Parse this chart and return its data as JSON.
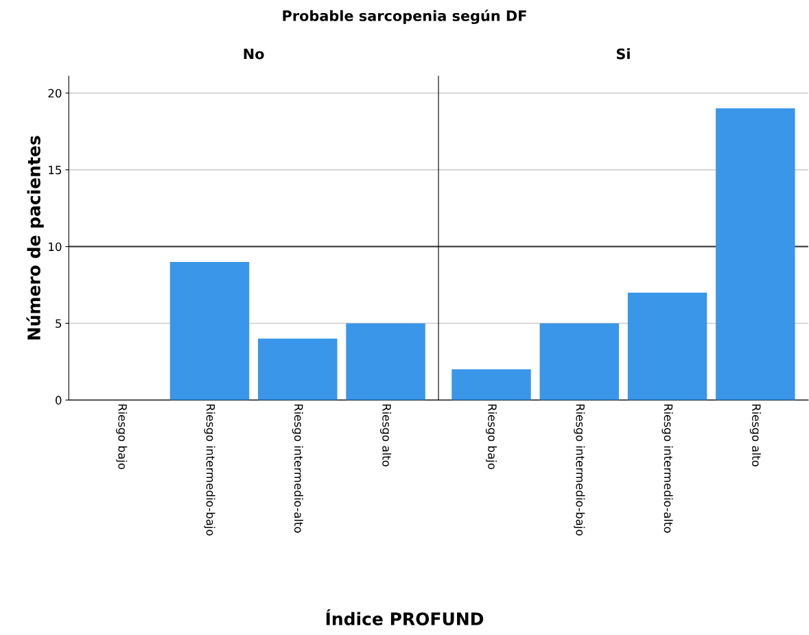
{
  "chart_data": [
    {
      "type": "bar",
      "title": "No",
      "ylabel": "Número de pacientes",
      "xlabel": "Índice PROFUND",
      "annotations": [
        "Probable sarcopenia según DF"
      ],
      "categories": [
        "Riesgo bajo",
        "Riesgo intermedio-bajo",
        "Riesgo intermedio-alto",
        "Riesgo alto"
      ],
      "values": [
        0,
        9,
        4,
        5
      ],
      "color": "#3a96e8",
      "ylim": [
        0,
        21.1
      ],
      "yticks": [
        0,
        5,
        10,
        15,
        20
      ],
      "grid": "y",
      "ref_lines": [
        {
          "axis": "y",
          "value": 10,
          "color": "#333333"
        }
      ]
    },
    {
      "type": "bar",
      "title": "Si",
      "categories": [
        "Riesgo bajo",
        "Riesgo intermedio-bajo",
        "Riesgo intermedio-alto",
        "Riesgo alto"
      ],
      "values": [
        2,
        5,
        7,
        19
      ],
      "color": "#3a96e8",
      "ylim": [
        0,
        21.1
      ],
      "yticks": [
        0,
        5,
        10,
        15,
        20
      ],
      "grid": "y",
      "tick_labels": "x",
      "ref_lines": [
        {
          "axis": "y",
          "value": 10,
          "color": "#333333"
        }
      ]
    }
  ]
}
